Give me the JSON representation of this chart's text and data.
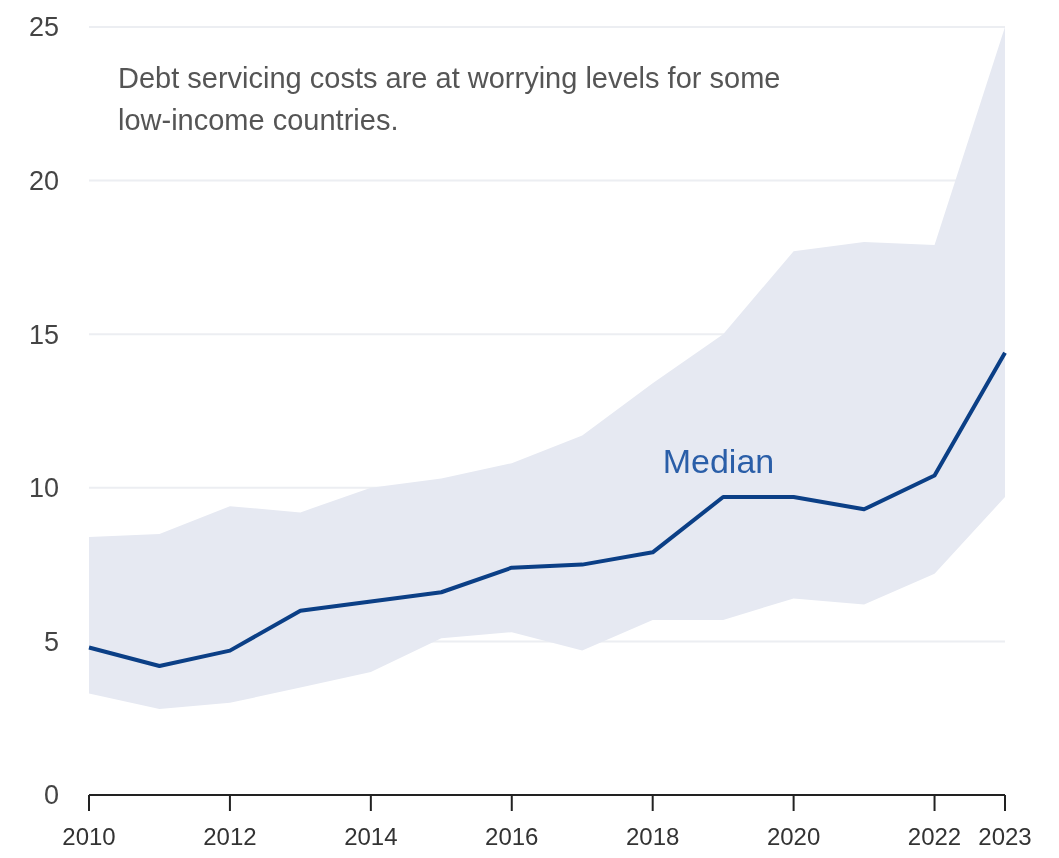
{
  "chart_data": {
    "type": "line",
    "annotations": [
      "Debt servicing costs are at worrying levels for some low-income countries."
    ],
    "x": [
      2010,
      2011,
      2012,
      2013,
      2014,
      2015,
      2016,
      2017,
      2018,
      2019,
      2020,
      2021,
      2022,
      2023
    ],
    "series": [
      {
        "name": "Median",
        "color": "#0b3f86",
        "values": [
          4.8,
          4.2,
          4.7,
          6.0,
          6.3,
          6.6,
          7.4,
          7.5,
          7.9,
          9.7,
          9.7,
          9.3,
          10.4,
          14.4
        ],
        "lower": [
          3.3,
          2.8,
          3.0,
          3.5,
          4.0,
          5.1,
          5.3,
          4.7,
          5.7,
          5.7,
          6.4,
          6.2,
          7.2,
          9.7
        ],
        "upper": [
          8.4,
          8.5,
          9.4,
          9.2,
          10.0,
          10.3,
          10.8,
          11.7,
          13.4,
          15.0,
          17.7,
          18.0,
          17.9,
          25.0
        ]
      }
    ],
    "xlim": [
      2010,
      2023
    ],
    "xticks": [
      2010,
      2012,
      2014,
      2016,
      2018,
      2020,
      2022,
      2023
    ],
    "ylim": [
      0,
      25
    ],
    "yticks": [
      0,
      5,
      10,
      15,
      20,
      25
    ],
    "grid": "y",
    "marker": "none",
    "line_style": "solid"
  }
}
